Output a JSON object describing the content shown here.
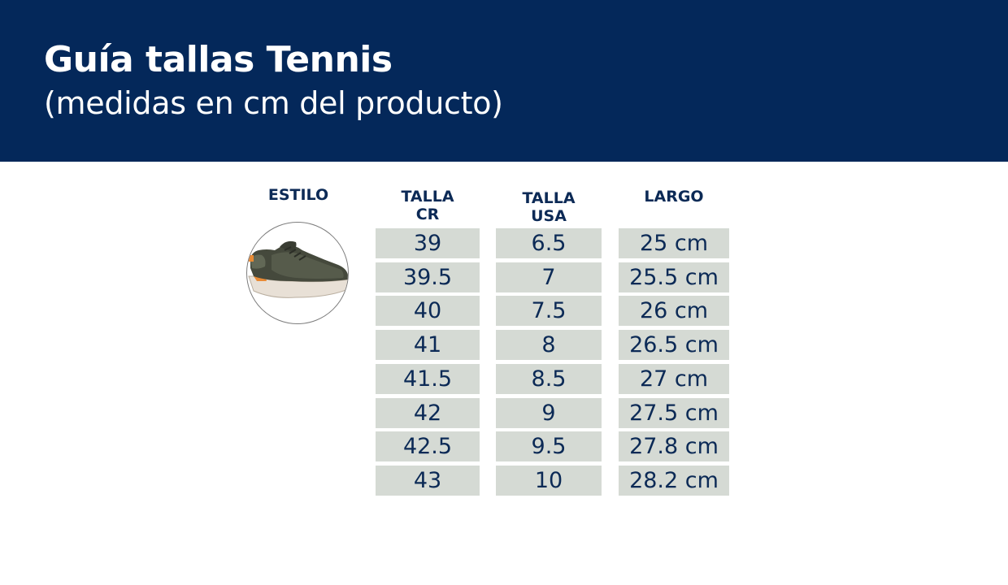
{
  "header": {
    "title": "Guía tallas Tennis",
    "subtitle": "(medidas en cm del producto)"
  },
  "columns": {
    "estilo": "ESTILO",
    "talla_cr": "TALLA\nCR",
    "talla_usa": "TALLA\nUSA",
    "largo": "LARGO"
  },
  "product_image": "sneaker-photo",
  "rows": [
    {
      "cr": "39",
      "usa": "6.5",
      "largo": "25 cm"
    },
    {
      "cr": "39.5",
      "usa": "7",
      "largo": "25.5 cm"
    },
    {
      "cr": "40",
      "usa": "7.5",
      "largo": "26 cm"
    },
    {
      "cr": "41",
      "usa": "8",
      "largo": "26.5 cm"
    },
    {
      "cr": "41.5",
      "usa": "8.5",
      "largo": "27 cm"
    },
    {
      "cr": "42",
      "usa": "9",
      "largo": "27.5 cm"
    },
    {
      "cr": "42.5",
      "usa": "9.5",
      "largo": "27.8 cm"
    },
    {
      "cr": "43",
      "usa": "10",
      "largo": "28.2 cm"
    }
  ],
  "colors": {
    "banner": "#04285a",
    "text": "#0c2a56",
    "cell": "#d5dad4"
  }
}
